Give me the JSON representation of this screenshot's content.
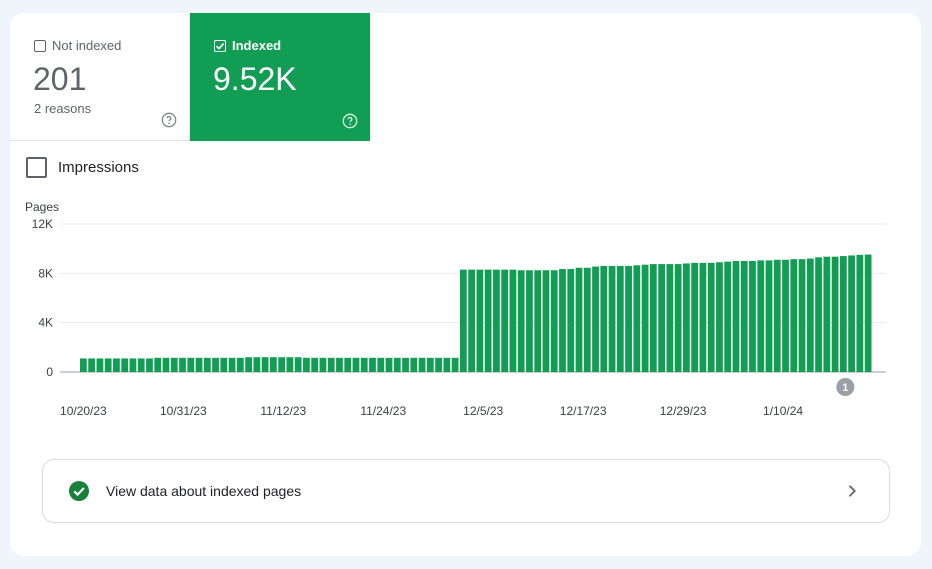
{
  "tiles": {
    "not_indexed": {
      "label": "Not indexed",
      "value": "201",
      "sub": "2 reasons",
      "checked": false,
      "icon": "help-icon"
    },
    "indexed": {
      "label": "Indexed",
      "value": "9.52K",
      "checked": true,
      "icon": "help-icon",
      "color": "#129d55"
    }
  },
  "impressions": {
    "label": "Impressions",
    "checked": false
  },
  "link": {
    "label": "View data about indexed pages",
    "icon": "check-circle-icon",
    "chevron": "chevron-right-icon"
  },
  "chart_data": {
    "type": "bar",
    "ylabel": "Pages",
    "ylim": [
      0,
      12000
    ],
    "yticks": [
      "0",
      "4K",
      "8K",
      "12K"
    ],
    "xtick_labels": [
      "10/20/23",
      "10/31/23",
      "11/12/23",
      "11/24/23",
      "12/5/23",
      "12/17/23",
      "12/29/23",
      "1/10/24"
    ],
    "bar_color": "#129d55",
    "annotation": {
      "label": "1"
    },
    "values": [
      1100,
      1100,
      1100,
      1100,
      1100,
      1100,
      1100,
      1100,
      1100,
      1150,
      1150,
      1150,
      1150,
      1150,
      1150,
      1150,
      1150,
      1150,
      1150,
      1150,
      1200,
      1200,
      1200,
      1200,
      1200,
      1200,
      1200,
      1150,
      1150,
      1150,
      1150,
      1150,
      1150,
      1150,
      1150,
      1150,
      1150,
      1150,
      1150,
      1150,
      1150,
      1150,
      1150,
      1150,
      1150,
      1150,
      8300,
      8300,
      8300,
      8300,
      8300,
      8300,
      8300,
      8250,
      8250,
      8250,
      8250,
      8250,
      8350,
      8350,
      8450,
      8450,
      8550,
      8600,
      8600,
      8600,
      8600,
      8650,
      8700,
      8750,
      8750,
      8750,
      8750,
      8800,
      8850,
      8850,
      8850,
      8900,
      8950,
      9000,
      9000,
      9000,
      9050,
      9050,
      9100,
      9100,
      9150,
      9150,
      9200,
      9300,
      9350,
      9350,
      9400,
      9450,
      9500,
      9520
    ]
  }
}
